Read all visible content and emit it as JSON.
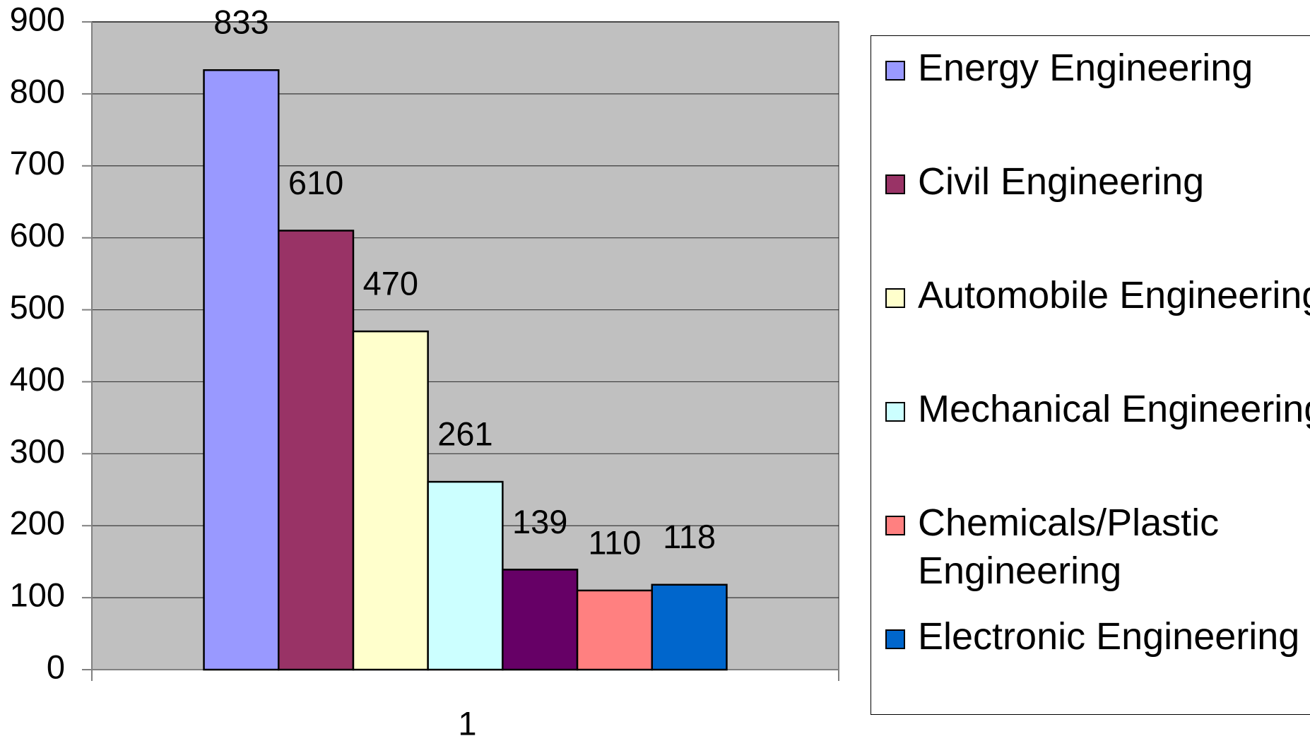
{
  "chart_data": {
    "type": "bar",
    "categories": [
      "1"
    ],
    "series": [
      {
        "name": "Energy Engineering",
        "color": "#9999ff",
        "values": [
          833
        ]
      },
      {
        "name": "Civil Engineering",
        "color": "#993366",
        "values": [
          610
        ]
      },
      {
        "name": "Automobile Engineering",
        "color": "#ffffcc",
        "values": [
          470
        ]
      },
      {
        "name": "Mechanical Engineering",
        "color": "#ccffff",
        "values": [
          261
        ]
      },
      {
        "name": null,
        "color": "#660066",
        "values": [
          139
        ]
      },
      {
        "name": "Chemicals/Plastic Engineering",
        "color": "#ff8080",
        "values": [
          110
        ]
      },
      {
        "name": "Electronic Engineering",
        "color": "#0066cc",
        "values": [
          118
        ]
      }
    ],
    "ylim": [
      0,
      900
    ],
    "yticks": [
      0,
      100,
      200,
      300,
      400,
      500,
      600,
      700,
      800,
      900
    ],
    "grid": true,
    "legend": "right",
    "plot_background": "#c0c0c0"
  }
}
